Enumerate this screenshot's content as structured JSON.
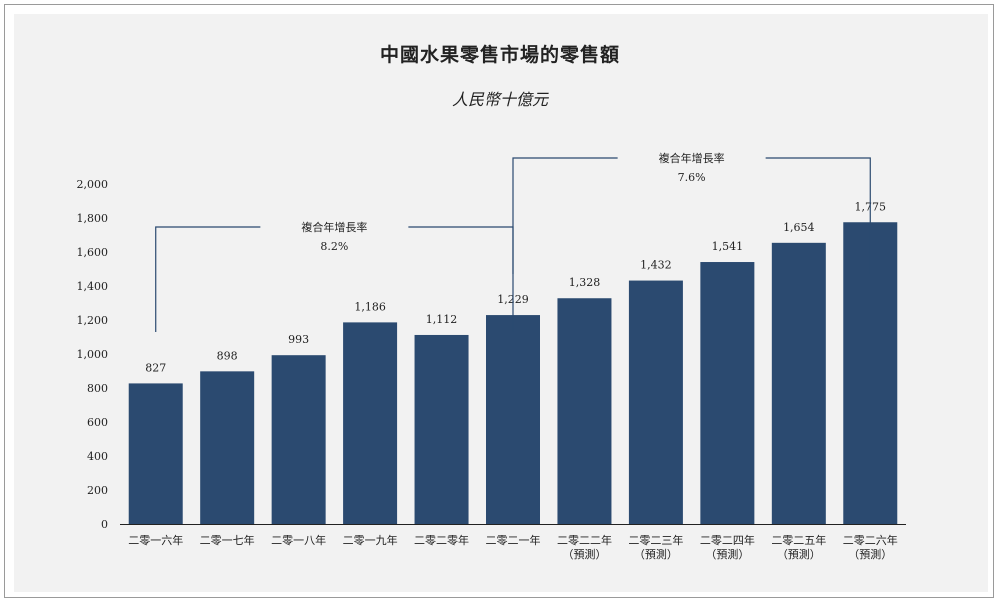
{
  "chart_data": {
    "type": "bar",
    "title": "中國水果零售市場的零售額",
    "subtitle": "人民幣十億元",
    "categories": [
      [
        "二零一六年"
      ],
      [
        "二零一七年"
      ],
      [
        "二零一八年"
      ],
      [
        "二零一九年"
      ],
      [
        "二零二零年"
      ],
      [
        "二零二一年"
      ],
      [
        "二零二二年",
        "（預測）"
      ],
      [
        "二零二三年",
        "（預測）"
      ],
      [
        "二零二四年",
        "（預測）"
      ],
      [
        "二零二五年",
        "（預測）"
      ],
      [
        "二零二六年",
        "（預測）"
      ]
    ],
    "values": [
      827,
      898,
      993,
      1186,
      1112,
      1229,
      1328,
      1432,
      1541,
      1654,
      1775
    ],
    "value_labels": [
      "827",
      "898",
      "993",
      "1,186",
      "1,112",
      "1,229",
      "1,328",
      "1,432",
      "1,541",
      "1,654",
      "1,775"
    ],
    "ylim": [
      0,
      2000
    ],
    "yticks": [
      0,
      200,
      400,
      600,
      800,
      1000,
      1200,
      1400,
      1600,
      1800,
      2000
    ],
    "ytick_labels": [
      "0",
      "200",
      "400",
      "600",
      "800",
      "1,000",
      "1,200",
      "1,400",
      "1,600",
      "1,800",
      "2,000"
    ],
    "bar_color": "#2b4a70",
    "annotations": [
      {
        "label": "複合年增長率",
        "value": "8.2%",
        "from_index": 0,
        "to_index": 5
      },
      {
        "label": "複合年增長率",
        "value": "7.6%",
        "from_index": 5,
        "to_index": 10
      }
    ]
  }
}
